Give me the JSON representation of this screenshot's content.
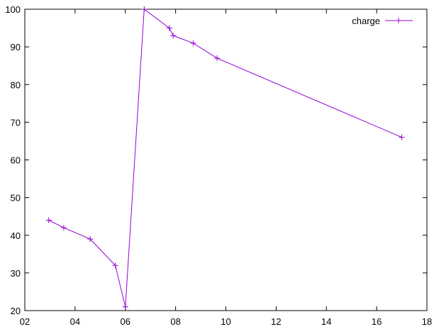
{
  "chart_data": {
    "type": "line",
    "x_axis": {
      "min": 2,
      "max": 18,
      "ticks": [
        2,
        4,
        6,
        8,
        10,
        12,
        14,
        16,
        18
      ],
      "tick_labels": [
        "02",
        "04",
        "06",
        "08",
        "10",
        "12",
        "14",
        "16",
        "18"
      ]
    },
    "y_axis": {
      "min": 20,
      "max": 100,
      "ticks": [
        20,
        30,
        40,
        50,
        60,
        70,
        80,
        90,
        100
      ],
      "tick_labels": [
        "20",
        "30",
        "40",
        "50",
        "60",
        "70",
        "80",
        "90",
        "100"
      ]
    },
    "grid": false,
    "legend_position": "top-right",
    "series": [
      {
        "name": "charge",
        "color": "#9400d3",
        "marker": "plus",
        "points": [
          {
            "x": 2.95,
            "y": 44
          },
          {
            "x": 3.55,
            "y": 42
          },
          {
            "x": 4.6,
            "y": 39
          },
          {
            "x": 5.6,
            "y": 32
          },
          {
            "x": 6.0,
            "y": 21
          },
          {
            "x": 6.75,
            "y": 100
          },
          {
            "x": 7.75,
            "y": 95
          },
          {
            "x": 7.9,
            "y": 93
          },
          {
            "x": 8.7,
            "y": 91
          },
          {
            "x": 9.65,
            "y": 87
          },
          {
            "x": 17.0,
            "y": 66
          }
        ]
      }
    ]
  }
}
